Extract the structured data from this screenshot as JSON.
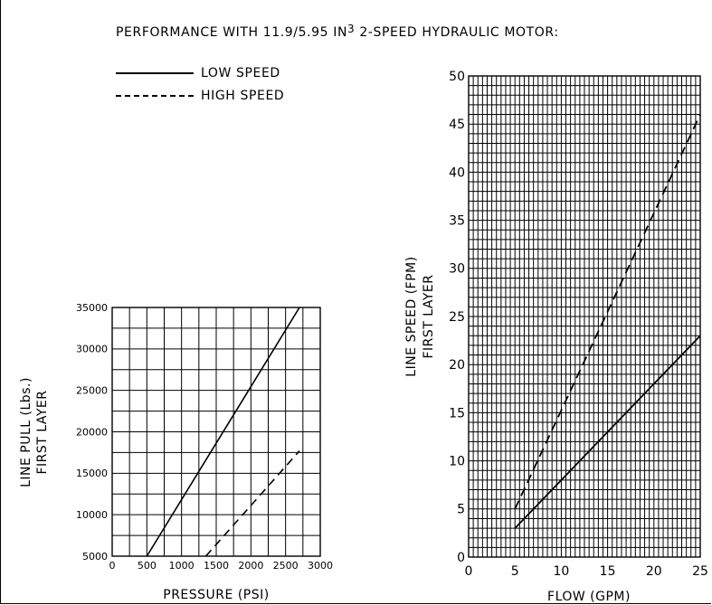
{
  "heading": {
    "text": "PERFORMANCE WITH 11.9/5.95 IN",
    "superscript": "3",
    "suffix": "2-SPEED HYDRAULIC MOTOR:"
  },
  "legend": [
    {
      "label": "LOW SPEED",
      "style": "solid"
    },
    {
      "label": "HIGH SPEED",
      "style": "dashed"
    }
  ],
  "chart_data": [
    {
      "type": "line",
      "xlabel": "PRESSURE (PSI)",
      "ylabel": [
        "LINE PULL (Lbs.)",
        "FIRST LAYER"
      ],
      "xlim": [
        0,
        3000
      ],
      "ylim": [
        5000,
        35000
      ],
      "xticks": [
        0,
        500,
        1000,
        1500,
        2000,
        2500,
        3000
      ],
      "yticks": [
        5000,
        10000,
        15000,
        20000,
        25000,
        30000,
        35000
      ],
      "x_grid_step": 250,
      "y_grid_step": 2500,
      "grid": true,
      "series": [
        {
          "name": "LOW SPEED",
          "style": "solid",
          "x": [
            500,
            2700
          ],
          "y": [
            5000,
            35000
          ]
        },
        {
          "name": "HIGH SPEED",
          "style": "dashed",
          "x": [
            1350,
            2700
          ],
          "y": [
            5000,
            17700
          ]
        }
      ]
    },
    {
      "type": "line",
      "xlabel": "FLOW (GPM)",
      "ylabel": [
        "LINE SPEED (FPM)",
        "FIRST LAYER"
      ],
      "xlim": [
        0,
        25
      ],
      "ylim": [
        0,
        50
      ],
      "xticks": [
        0,
        5,
        10,
        15,
        20,
        25
      ],
      "yticks": [
        0,
        5,
        10,
        15,
        20,
        25,
        30,
        35,
        40,
        45,
        50
      ],
      "x_grid_step": 0.5,
      "y_grid_step": 1,
      "grid": true,
      "series": [
        {
          "name": "LOW SPEED",
          "style": "solid",
          "x": [
            5,
            25
          ],
          "y": [
            3,
            23
          ]
        },
        {
          "name": "HIGH SPEED",
          "style": "dashed",
          "x": [
            5,
            25
          ],
          "y": [
            5,
            46
          ]
        }
      ]
    }
  ]
}
